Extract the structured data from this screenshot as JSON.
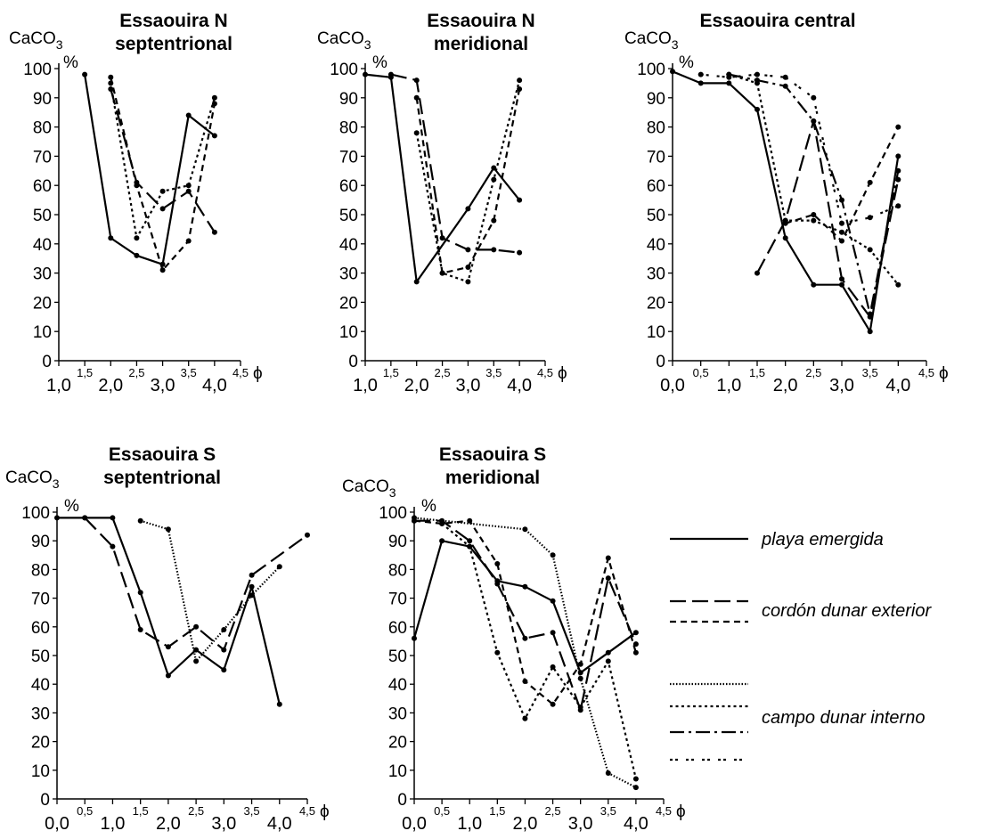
{
  "styles": {
    "solid": "",
    "longdash": "18,7",
    "shortdash": "7,5",
    "fineDot": "1.5,2",
    "dot": "3,3.5",
    "dashdot": "16,5,3,5",
    "dotdot": "3,3,3,9"
  },
  "legend": {
    "items": [
      {
        "label": "playa emergida",
        "styles": [
          "solid"
        ]
      },
      {
        "label": "cordón dunar exterior",
        "styles": [
          "longdash",
          "shortdash"
        ]
      },
      {
        "label": "campo dunar interno",
        "styles": [
          "fineDot",
          "dot",
          "dashdot",
          "dotdot"
        ]
      }
    ]
  },
  "chart_data": [
    {
      "type": "line",
      "title": [
        "Essaouira N",
        "septentrional"
      ],
      "ylabel": "CaCO3",
      "yunit": "%",
      "xunit": "ϕ",
      "ylim": [
        0,
        100
      ],
      "xlim": [
        1.0,
        4.5
      ],
      "x_ticks_major": [
        "1,0",
        "2,0",
        "3,0",
        "4,0"
      ],
      "x_ticks_minor": [
        "1,5",
        "2,5",
        "3,5",
        "4,5"
      ],
      "series": [
        {
          "style": "solid",
          "x": [
            1.5,
            2.0,
            2.5,
            3.0,
            3.5,
            4.0
          ],
          "y": [
            98,
            42,
            36,
            33,
            84,
            77
          ]
        },
        {
          "style": "longdash",
          "x": [
            2.0,
            2.5,
            3.0,
            3.5,
            4.0
          ],
          "y": [
            93,
            61,
            52,
            58,
            44
          ]
        },
        {
          "style": "shortdash",
          "x": [
            2.0,
            2.5,
            3.0,
            3.5,
            4.0
          ],
          "y": [
            97,
            60,
            31,
            41,
            88
          ]
        },
        {
          "style": "dot",
          "x": [
            2.0,
            2.5,
            3.0,
            3.5,
            4.0
          ],
          "y": [
            95,
            42,
            58,
            60,
            90
          ]
        }
      ]
    },
    {
      "type": "line",
      "title": [
        "Essaouira N",
        "meridional"
      ],
      "ylabel": "CaCO3",
      "yunit": "%",
      "xunit": "ϕ",
      "ylim": [
        0,
        100
      ],
      "xlim": [
        1.0,
        4.5
      ],
      "x_ticks_major": [
        "1,0",
        "2,0",
        "3,0",
        "4,0"
      ],
      "x_ticks_minor": [
        "1,5",
        "2,5",
        "3,5",
        "4,5"
      ],
      "series": [
        {
          "style": "solid",
          "x": [
            1.0,
            1.5,
            2.0,
            3.0,
            3.5,
            4.0
          ],
          "y": [
            98,
            97,
            27,
            52,
            66,
            55
          ]
        },
        {
          "style": "longdash",
          "x": [
            1.5,
            2.0,
            2.5,
            3.0,
            3.5,
            4.0
          ],
          "y": [
            98,
            96,
            42,
            38,
            38,
            37
          ]
        },
        {
          "style": "shortdash",
          "x": [
            2.0,
            2.5,
            3.0,
            3.5,
            4.0
          ],
          "y": [
            90,
            30,
            32,
            48,
            93
          ]
        },
        {
          "style": "dot",
          "x": [
            2.0,
            2.5,
            3.0,
            3.5,
            4.0
          ],
          "y": [
            78,
            30,
            27,
            62,
            96
          ]
        }
      ]
    },
    {
      "type": "line",
      "title": [
        "Essaouira central"
      ],
      "ylabel": "CaCO3",
      "yunit": "%",
      "xunit": "ϕ",
      "ylim": [
        0,
        100
      ],
      "xlim": [
        0.0,
        4.5
      ],
      "x_ticks_major": [
        "0,0",
        "1,0",
        "2,0",
        "3,0",
        "4,0"
      ],
      "x_ticks_minor": [
        "0,5",
        "1,5",
        "2,5",
        "3,5",
        "4,5"
      ],
      "series": [
        {
          "style": "solid",
          "x": [
            0.0,
            0.5,
            1.0,
            1.5,
            2.0,
            2.5,
            3.0,
            3.5,
            4.0
          ],
          "y": [
            99,
            95,
            95,
            86,
            42,
            26,
            26,
            10,
            70
          ]
        },
        {
          "style": "longdash",
          "x": [
            1.5,
            2.0,
            2.5,
            3.0,
            3.5,
            4.0
          ],
          "y": [
            30,
            48,
            82,
            28,
            15,
            62
          ]
        },
        {
          "style": "shortdash",
          "x": [
            2.0,
            2.5,
            3.0,
            3.5,
            4.0
          ],
          "y": [
            47,
            50,
            41,
            61,
            80
          ]
        },
        {
          "style": "dot",
          "x": [
            1.0,
            1.5,
            2.0,
            2.5,
            3.0,
            3.5,
            4.0
          ],
          "y": [
            98,
            95,
            48,
            48,
            44,
            38,
            26
          ]
        },
        {
          "style": "dashdot",
          "x": [
            1.0,
            1.5,
            2.0,
            2.5,
            3.0,
            3.5,
            4.0
          ],
          "y": [
            98,
            96,
            94,
            82,
            55,
            16,
            65
          ]
        },
        {
          "style": "dotdot",
          "x": [
            0.5,
            1.0,
            1.5,
            2.0,
            2.5,
            3.0,
            3.5,
            4.0
          ],
          "y": [
            98,
            97,
            98,
            97,
            90,
            47,
            49,
            53
          ]
        }
      ]
    },
    {
      "type": "line",
      "title": [
        "Essaouira S",
        "septentrional"
      ],
      "ylabel": "CaCO3",
      "yunit": "%",
      "xunit": "ϕ",
      "ylim": [
        0,
        100
      ],
      "xlim": [
        0.0,
        4.5
      ],
      "x_ticks_major": [
        "0,0",
        "1,0",
        "2,0",
        "3,0",
        "4,0"
      ],
      "x_ticks_minor": [
        "0,5",
        "1,5",
        "2,5",
        "3,5",
        "4,5"
      ],
      "series": [
        {
          "style": "solid",
          "x": [
            0.0,
            0.5,
            1.0,
            1.5,
            2.0,
            2.5,
            3.0,
            3.5,
            4.0
          ],
          "y": [
            98,
            98,
            98,
            72,
            43,
            52,
            45,
            74,
            33
          ]
        },
        {
          "style": "longdash",
          "x": [
            0.5,
            1.0,
            1.5,
            2.0,
            2.5,
            3.0,
            3.5,
            4.5
          ],
          "y": [
            98,
            88,
            59,
            53,
            60,
            52,
            78,
            92
          ]
        },
        {
          "style": "fineDot",
          "x": [
            1.5,
            2.0,
            2.5,
            3.0,
            3.5,
            4.0
          ],
          "y": [
            97,
            94,
            48,
            59,
            71,
            81
          ]
        }
      ]
    },
    {
      "type": "line",
      "title": [
        "Essaouira S",
        "meridional"
      ],
      "ylabel": "CaCO3",
      "yunit": "%",
      "xunit": "ϕ",
      "ylim": [
        0,
        100
      ],
      "xlim": [
        0.0,
        4.5
      ],
      "x_ticks_major": [
        "0,0",
        "1,0",
        "2,0",
        "3,0",
        "4,0"
      ],
      "x_ticks_minor": [
        "0,5",
        "1,5",
        "2,5",
        "3,5",
        "4,5"
      ],
      "series": [
        {
          "style": "solid",
          "x": [
            0.0,
            0.5,
            1.0,
            1.5,
            2.0,
            2.5,
            3.0,
            3.5,
            4.0
          ],
          "y": [
            56,
            90,
            88,
            76,
            74,
            69,
            44,
            51,
            58
          ]
        },
        {
          "style": "longdash",
          "x": [
            0.0,
            0.5,
            1.0,
            1.5,
            2.0,
            2.5,
            3.0,
            3.5,
            4.0
          ],
          "y": [
            97,
            97,
            90,
            75,
            56,
            58,
            31,
            77,
            54
          ]
        },
        {
          "style": "shortdash",
          "x": [
            0.0,
            0.5,
            1.0,
            1.5,
            2.0,
            2.5,
            3.0,
            3.5,
            4.0
          ],
          "y": [
            97,
            96,
            97,
            82,
            41,
            33,
            47,
            84,
            51
          ]
        },
        {
          "style": "dot",
          "x": [
            0.5,
            1.0,
            1.5,
            2.0,
            2.5,
            3.0,
            3.5,
            4.0
          ],
          "y": [
            96,
            88,
            51,
            28,
            46,
            32,
            48,
            7
          ]
        },
        {
          "style": "fineDot",
          "x": [
            0.0,
            2.0,
            2.5,
            3.0,
            3.5,
            4.0
          ],
          "y": [
            98,
            94,
            85,
            42,
            9,
            4
          ]
        }
      ]
    }
  ]
}
